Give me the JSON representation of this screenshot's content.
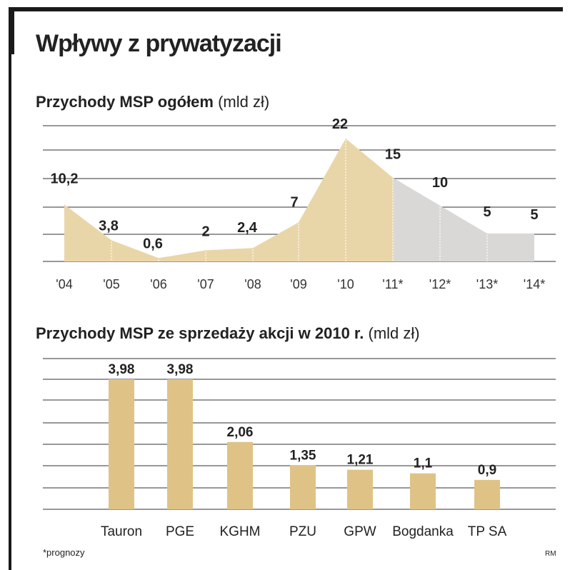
{
  "header": {
    "title": "Wpływy z prywatyzacji"
  },
  "footer": {
    "note": "*prognozy",
    "credit": "RM"
  },
  "colors": {
    "actual": "#e9d6a8",
    "forecast": "#d9d8d7",
    "bar": "#dfc386",
    "grid": "#5a5a5a",
    "frame": "#1a1a1a"
  },
  "chart_data": [
    {
      "type": "area",
      "title": "Przychody MSP ogółem",
      "unit": "(mld zł)",
      "categories": [
        "'04",
        "'05",
        "'06",
        "'07",
        "'08",
        "'09",
        "'10",
        "'11*",
        "'12*",
        "'13*",
        "'14*"
      ],
      "values": [
        10.2,
        3.8,
        0.6,
        2,
        2.4,
        7,
        22,
        15,
        10,
        5,
        5
      ],
      "value_labels": [
        "10,2",
        "3,8",
        "0,6",
        "2",
        "2,4",
        "7",
        "22",
        "15",
        "10",
        "5",
        "5"
      ],
      "forecast_from_index": 7,
      "ylim": [
        0,
        26
      ],
      "grid": true
    },
    {
      "type": "bar",
      "title": "Przychody MSP ze sprzedaży akcji w 2010 r.",
      "unit": "(mld zł)",
      "categories": [
        "Tauron",
        "PGE",
        "KGHM",
        "PZU",
        "GPW",
        "Bogdanka",
        "TP SA"
      ],
      "values": [
        3.98,
        3.98,
        2.06,
        1.35,
        1.21,
        1.1,
        0.9
      ],
      "value_labels": [
        "3,98",
        "3,98",
        "2,06",
        "1,35",
        "1,21",
        "1,1",
        "0,9"
      ],
      "ylim": [
        0,
        4.2
      ],
      "grid": true
    }
  ]
}
